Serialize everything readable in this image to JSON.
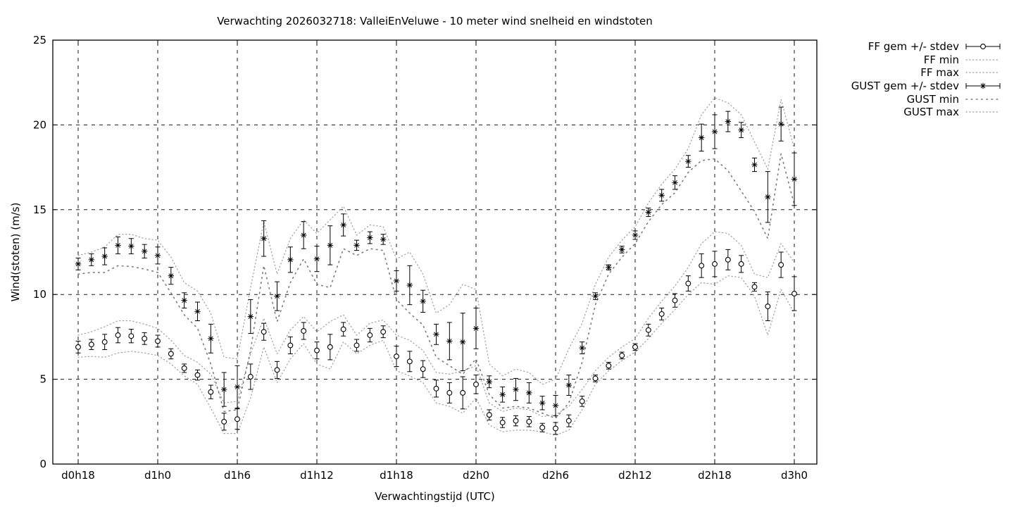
{
  "window": {
    "background": "#ffffff"
  },
  "chart": {
    "title": "Verwachting 2026032718: ValleiEnVeluwe - 10 meter wind snelheid en windstoten",
    "xlabel": "Verwachtingstijd (UTC)",
    "ylabel": "Wind(stoten) (m/s)"
  },
  "colors": {
    "foreground": "#000000",
    "grid": "#1a1a1a",
    "envelope_fine": "#9b9b9b",
    "envelope_sparse": "#7a7a7a",
    "marker_fill": "#ffffff"
  },
  "chart_data": {
    "type": "line",
    "subtype": "gnuplot errorbars with dotted min/max envelopes, points not connected",
    "title": "Verwachting 2026032718: ValleiEnVeluwe - 10 meter wind snelheid en windstoten",
    "xlabel": "Verwachtingstijd (UTC)",
    "ylabel": "Wind(stoten) (m/s)",
    "ylim": [
      0,
      25
    ],
    "y_ticks": [
      0,
      5,
      10,
      15,
      20,
      25
    ],
    "x_tick_labels": [
      "d0h18",
      "d1h0",
      "d1h6",
      "d1h12",
      "d1h18",
      "d2h0",
      "d2h6",
      "d2h12",
      "d2h18",
      "d3h0"
    ],
    "x_tick_every": 6,
    "grid": true,
    "legend_position": "outside-top-right",
    "categories": [
      "d0h18",
      "d0h19",
      "d0h20",
      "d0h21",
      "d0h22",
      "d0h23",
      "d1h0",
      "d1h1",
      "d1h2",
      "d1h3",
      "d1h4",
      "d1h5",
      "d1h6",
      "d1h7",
      "d1h8",
      "d1h9",
      "d1h10",
      "d1h11",
      "d1h12",
      "d1h13",
      "d1h14",
      "d1h15",
      "d1h16",
      "d1h17",
      "d1h18",
      "d1h19",
      "d1h20",
      "d1h21",
      "d1h22",
      "d1h23",
      "d2h0",
      "d2h1",
      "d2h2",
      "d2h3",
      "d2h4",
      "d2h5",
      "d2h6",
      "d2h7",
      "d2h8",
      "d2h9",
      "d2h10",
      "d2h11",
      "d2h12",
      "d2h13",
      "d2h14",
      "d2h15",
      "d2h16",
      "d2h17",
      "d2h18",
      "d2h19",
      "d2h20",
      "d2h21",
      "d2h22",
      "d2h23",
      "d3h0"
    ],
    "series": [
      {
        "name": "FF gem +/- stdev",
        "type": "errorbar",
        "marker": "circle",
        "values": [
          6.9,
          7.05,
          7.2,
          7.6,
          7.55,
          7.4,
          7.25,
          6.5,
          5.65,
          5.25,
          4.25,
          2.5,
          2.65,
          5.15,
          7.8,
          5.55,
          7.0,
          7.85,
          6.7,
          6.9,
          7.95,
          7.0,
          7.6,
          7.8,
          6.35,
          6.05,
          5.6,
          4.45,
          4.2,
          4.2,
          4.7,
          2.9,
          2.45,
          2.55,
          2.5,
          2.15,
          2.1,
          2.55,
          3.7,
          5.05,
          5.8,
          6.4,
          6.9,
          7.9,
          8.85,
          9.65,
          10.65,
          11.7,
          11.8,
          12.05,
          11.8,
          10.45,
          9.3,
          11.75,
          10.05
        ],
        "stdev": [
          0.35,
          0.3,
          0.45,
          0.45,
          0.4,
          0.35,
          0.35,
          0.3,
          0.25,
          0.3,
          0.4,
          0.5,
          0.6,
          0.75,
          0.5,
          0.5,
          0.5,
          0.5,
          0.5,
          0.75,
          0.4,
          0.35,
          0.4,
          0.35,
          0.6,
          0.6,
          0.5,
          0.5,
          0.6,
          0.95,
          0.55,
          0.3,
          0.3,
          0.3,
          0.3,
          0.25,
          0.35,
          0.35,
          0.3,
          0.2,
          0.2,
          0.2,
          0.2,
          0.35,
          0.35,
          0.4,
          0.45,
          0.7,
          0.75,
          0.6,
          0.5,
          0.25,
          0.85,
          0.75,
          1.0
        ]
      },
      {
        "name": "FF min",
        "type": "dotted-line",
        "line_style": "fine-dotted",
        "values": [
          6.3,
          6.35,
          6.3,
          6.55,
          6.65,
          6.55,
          6.4,
          5.9,
          5.2,
          4.7,
          3.3,
          1.8,
          1.8,
          3.9,
          6.9,
          4.8,
          6.2,
          7.1,
          5.9,
          5.6,
          7.2,
          6.5,
          7.0,
          7.3,
          5.5,
          5.2,
          4.8,
          3.6,
          3.4,
          3.0,
          3.9,
          2.3,
          1.9,
          2.0,
          2.0,
          1.9,
          1.7,
          2.0,
          3.2,
          4.7,
          5.5,
          6.1,
          6.6,
          7.4,
          8.3,
          9.1,
          10.0,
          10.7,
          10.6,
          11.1,
          11.0,
          9.9,
          7.6,
          10.3,
          8.9
        ]
      },
      {
        "name": "FF max",
        "type": "dotted-line",
        "line_style": "fine-dotted",
        "values": [
          7.6,
          7.8,
          8.1,
          8.45,
          8.45,
          8.25,
          8.0,
          7.3,
          6.4,
          6.0,
          5.3,
          3.6,
          3.7,
          6.5,
          8.6,
          6.5,
          7.9,
          8.7,
          7.8,
          8.4,
          8.8,
          7.6,
          8.3,
          8.5,
          7.6,
          7.3,
          6.7,
          5.4,
          5.3,
          5.5,
          5.8,
          3.6,
          3.1,
          3.3,
          3.2,
          2.8,
          2.9,
          3.4,
          4.4,
          5.5,
          6.3,
          6.9,
          7.4,
          8.6,
          9.6,
          10.5,
          11.6,
          13.0,
          13.7,
          13.6,
          12.9,
          11.2,
          11.0,
          13.0,
          11.9
        ]
      },
      {
        "name": "GUST gem +/- stdev",
        "type": "errorbar",
        "marker": "asterisk",
        "values": [
          11.8,
          12.05,
          12.25,
          12.9,
          12.85,
          12.55,
          12.3,
          11.1,
          9.65,
          9.0,
          7.4,
          4.4,
          4.55,
          8.7,
          13.3,
          9.9,
          12.05,
          13.5,
          12.1,
          12.9,
          14.1,
          12.9,
          13.35,
          13.25,
          10.8,
          10.55,
          9.6,
          7.65,
          7.25,
          7.2,
          8.0,
          4.85,
          4.1,
          4.4,
          4.2,
          3.6,
          3.45,
          4.65,
          6.85,
          9.9,
          11.6,
          12.65,
          13.5,
          14.85,
          15.85,
          16.6,
          17.85,
          19.25,
          19.6,
          20.2,
          19.7,
          17.65,
          15.75,
          20.05,
          16.8
        ],
        "stdev": [
          0.35,
          0.35,
          0.5,
          0.5,
          0.45,
          0.4,
          0.5,
          0.5,
          0.45,
          0.55,
          0.85,
          1.0,
          1.25,
          1.0,
          1.05,
          0.85,
          0.75,
          0.8,
          0.75,
          1.15,
          0.65,
          0.3,
          0.35,
          0.3,
          0.6,
          1.15,
          0.65,
          0.6,
          1.1,
          1.7,
          1.2,
          0.35,
          0.45,
          0.65,
          0.6,
          0.4,
          0.6,
          0.6,
          0.35,
          0.2,
          0.15,
          0.2,
          0.25,
          0.25,
          0.35,
          0.4,
          0.35,
          0.8,
          1.0,
          0.6,
          0.45,
          0.4,
          1.5,
          1.0,
          1.55
        ]
      },
      {
        "name": "GUST min",
        "type": "dotted-line",
        "line_style": "sparse-dotted",
        "values": [
          11.2,
          11.3,
          11.3,
          11.7,
          11.65,
          11.5,
          11.3,
          10.1,
          8.8,
          8.0,
          5.9,
          3.1,
          3.2,
          6.7,
          11.7,
          8.4,
          10.7,
          12.1,
          10.6,
          10.4,
          12.7,
          12.3,
          12.7,
          12.6,
          9.7,
          8.9,
          8.2,
          6.3,
          5.8,
          5.3,
          6.2,
          4.1,
          3.3,
          3.4,
          3.3,
          3.0,
          2.7,
          3.6,
          6.0,
          9.4,
          11.2,
          12.2,
          13.0,
          14.3,
          15.3,
          16.0,
          17.2,
          17.9,
          18.0,
          17.3,
          16.1,
          14.9,
          13.3,
          18.3,
          15.3
        ]
      },
      {
        "name": "GUST max",
        "type": "dotted-line",
        "line_style": "fine-dotted",
        "values": [
          12.3,
          12.5,
          12.8,
          13.55,
          13.55,
          13.3,
          13.2,
          12.2,
          10.7,
          10.2,
          8.9,
          6.3,
          6.2,
          10.4,
          14.3,
          11.2,
          13.3,
          14.4,
          13.6,
          14.4,
          15.2,
          13.5,
          14.1,
          14.0,
          12.1,
          12.5,
          11.2,
          8.9,
          9.4,
          10.6,
          10.3,
          5.9,
          5.2,
          5.6,
          5.4,
          4.7,
          5.0,
          6.8,
          8.3,
          10.6,
          12.2,
          13.2,
          14.0,
          15.4,
          16.5,
          17.4,
          18.6,
          20.6,
          21.6,
          21.3,
          20.6,
          19.0,
          17.4,
          21.5,
          18.6
        ]
      }
    ]
  }
}
